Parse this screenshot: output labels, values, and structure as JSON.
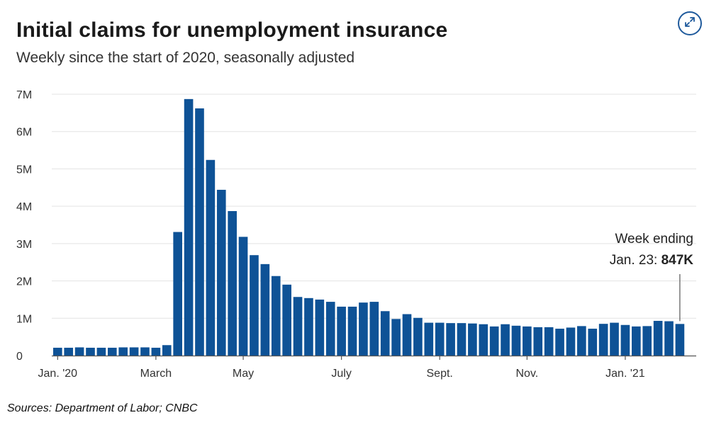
{
  "header": {
    "title": "Initial claims for unemployment insurance",
    "subtitle": "Weekly since the start of 2020, seasonally adjusted"
  },
  "footer": {
    "source": "Sources:  Department of Labor; CNBC"
  },
  "icons": {
    "expand": "expand-arrows-icon"
  },
  "colors": {
    "bar": "#0e5296",
    "grid": "#e3e3e3",
    "axis": "#555555",
    "accent": "#1f5a9c"
  },
  "chart_data": {
    "type": "bar",
    "title": "Initial claims for unemployment insurance",
    "subtitle": "Weekly since the start of 2020, seasonally adjusted",
    "xlabel": "",
    "ylabel": "",
    "ylim": [
      0,
      7000000
    ],
    "grid": true,
    "y_ticks": [
      {
        "value": 0,
        "label": "0"
      },
      {
        "value": 1000000,
        "label": "1M"
      },
      {
        "value": 2000000,
        "label": "2M"
      },
      {
        "value": 3000000,
        "label": "3M"
      },
      {
        "value": 4000000,
        "label": "4M"
      },
      {
        "value": 5000000,
        "label": "5M"
      },
      {
        "value": 6000000,
        "label": "6M"
      },
      {
        "value": 7000000,
        "label": "7M"
      }
    ],
    "x_ticks": [
      {
        "index": 0,
        "label": "Jan. '20"
      },
      {
        "index": 9,
        "label": "March"
      },
      {
        "index": 17,
        "label": "May"
      },
      {
        "index": 26,
        "label": "July"
      },
      {
        "index": 35,
        "label": "Sept."
      },
      {
        "index": 43,
        "label": "Nov."
      },
      {
        "index": 52,
        "label": "Jan. '21"
      }
    ],
    "values": [
      210000,
      210000,
      220000,
      210000,
      210000,
      210000,
      220000,
      220000,
      220000,
      210000,
      280000,
      3310000,
      6870000,
      6620000,
      5240000,
      4440000,
      3870000,
      3180000,
      2690000,
      2450000,
      2130000,
      1900000,
      1570000,
      1540000,
      1500000,
      1440000,
      1310000,
      1310000,
      1420000,
      1440000,
      1190000,
      980000,
      1110000,
      1010000,
      880000,
      880000,
      870000,
      870000,
      860000,
      840000,
      780000,
      840000,
      800000,
      780000,
      760000,
      760000,
      720000,
      750000,
      790000,
      720000,
      850000,
      880000,
      820000,
      780000,
      790000,
      930000,
      920000,
      847000
    ],
    "annotation": {
      "index": 57,
      "line1": "Week ending",
      "line2_prefix": "Jan. 23: ",
      "line2_value": "847K"
    }
  }
}
